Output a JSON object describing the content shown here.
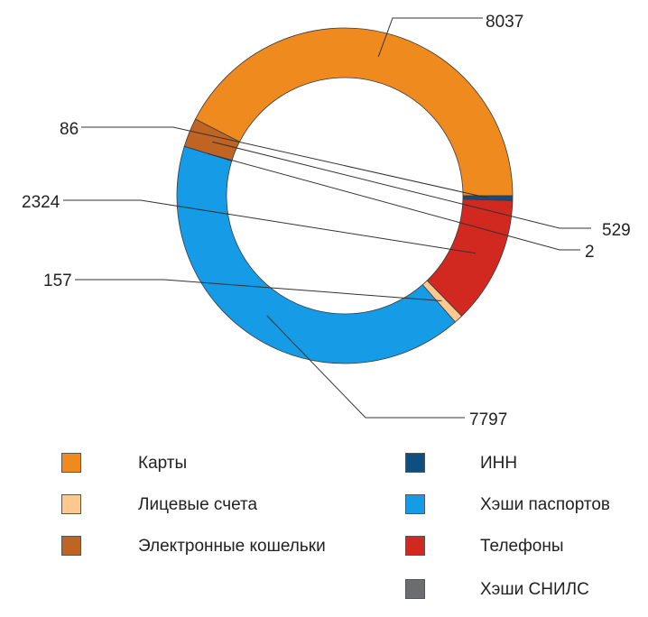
{
  "chart_data": {
    "type": "pie",
    "title": "",
    "variant": "donut",
    "slices": [
      {
        "label": "Карты",
        "value": 8037,
        "color": "#ef8a1f",
        "value_label": "8037"
      },
      {
        "label": "Электронные кошельки",
        "value": 529,
        "color": "#c06424",
        "value_label": "529"
      },
      {
        "label": "Хэши СНИЛС",
        "value": 2,
        "color": "#6b6d71",
        "value_label": "2"
      },
      {
        "label": "Хэши паспортов",
        "value": 7797,
        "color": "#169be7",
        "value_label": "7797"
      },
      {
        "label": "Лицевые счета",
        "value": 157,
        "color": "#ffc88f",
        "value_label": "157"
      },
      {
        "label": "Телефоны",
        "value": 2324,
        "color": "#d1281f",
        "value_label": "2324"
      },
      {
        "label": "ИНН",
        "value": 86,
        "color": "#0f4f7f",
        "value_label": "86"
      }
    ],
    "legend": [
      {
        "label": "Карты",
        "color": "#ef8a1f"
      },
      {
        "label": "Лицевые счета",
        "color": "#ffc88f"
      },
      {
        "label": "Электронные кошельки",
        "color": "#c06424"
      },
      {
        "label": "ИНН",
        "color": "#0f4f7f"
      },
      {
        "label": "Хэши паспортов",
        "color": "#169be7"
      },
      {
        "label": "Телефоны",
        "color": "#d1281f"
      },
      {
        "label": "Хэши СНИЛС",
        "color": "#6b6d71"
      }
    ],
    "legend_placement": "bottom"
  }
}
